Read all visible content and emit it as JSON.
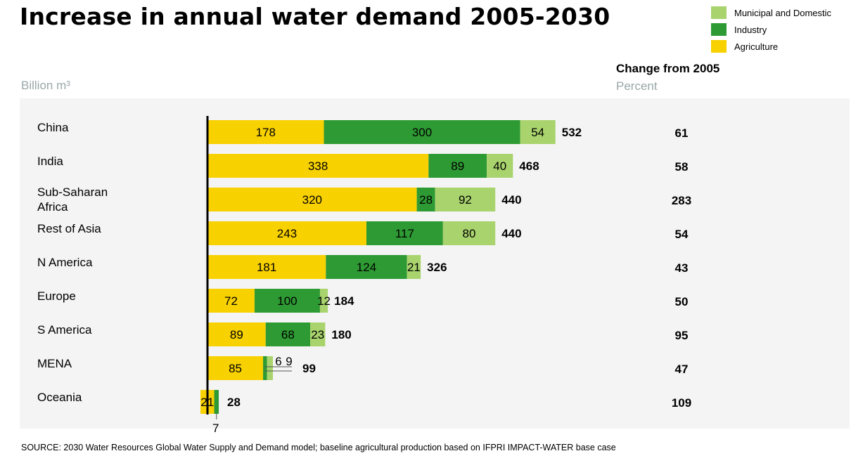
{
  "title": "Increase in annual water demand 2005-2030",
  "unit_label": "Billion m³",
  "change_header": "Change from 2005",
  "change_subheader": "Percent",
  "source": "SOURCE: 2030 Water Resources Global Water Supply and Demand model; baseline agricultural production based on IFPRI IMPACT-WATER base case",
  "colors": {
    "agriculture": "#f8d100",
    "industry": "#2e9a33",
    "municipal": "#a9d36d",
    "band": "#f4f4f4"
  },
  "legend": [
    {
      "label": "Municipal and Domestic",
      "color": "#a9d36d"
    },
    {
      "label": "Industry",
      "color": "#2e9a33"
    },
    {
      "label": "Agriculture",
      "color": "#f8d100"
    }
  ],
  "chart_data": {
    "type": "bar",
    "orientation": "horizontal",
    "stacked": true,
    "categories": [
      "China",
      "India",
      "Sub-Saharan Africa",
      "Rest of Asia",
      "N America",
      "Europe",
      "S America",
      "MENA",
      "Oceania"
    ],
    "category_lines": [
      [
        "China"
      ],
      [
        "India"
      ],
      [
        "Sub-Saharan",
        "Africa"
      ],
      [
        "Rest of Asia"
      ],
      [
        "N America"
      ],
      [
        "Europe"
      ],
      [
        "S America"
      ],
      [
        "MENA"
      ],
      [
        "Oceania"
      ]
    ],
    "series": [
      {
        "name": "Agriculture",
        "values": [
          178,
          338,
          320,
          243,
          181,
          72,
          89,
          85,
          21
        ]
      },
      {
        "name": "Industry",
        "values": [
          300,
          89,
          28,
          117,
          124,
          100,
          68,
          6,
          7
        ]
      },
      {
        "name": "Municipal and Domestic",
        "values": [
          54,
          40,
          92,
          80,
          21,
          12,
          23,
          9,
          0
        ]
      }
    ],
    "totals": [
      "532",
      "468",
      "440",
      "440",
      "326",
      "184",
      "180",
      "99",
      "28"
    ],
    "change_percent": [
      "61",
      "58",
      "283",
      "54",
      "43",
      "50",
      "95",
      "47",
      "109"
    ],
    "unit": "Billion m³",
    "xlim": [
      0,
      600
    ]
  }
}
